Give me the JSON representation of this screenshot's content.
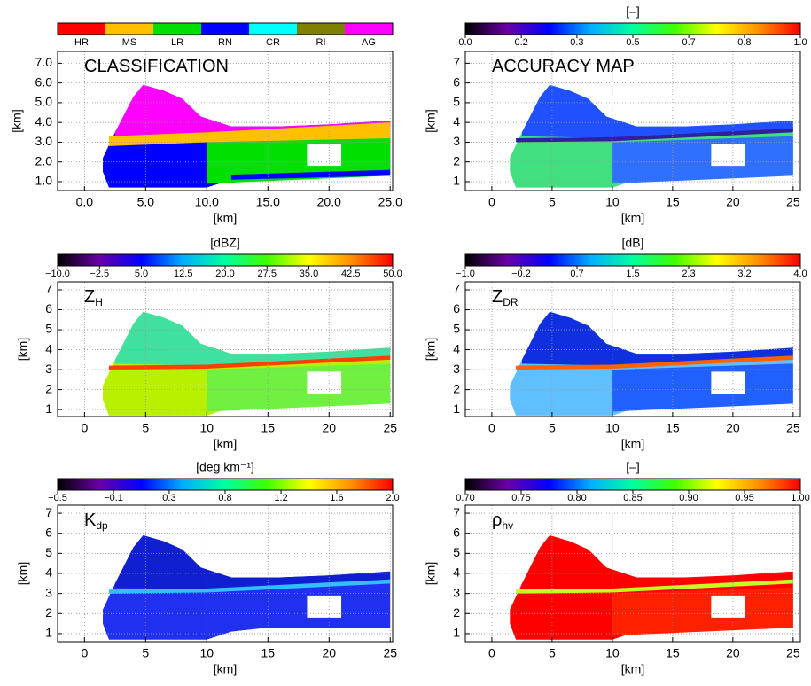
{
  "chart_data": [
    {
      "type": "heatmap",
      "title": "CLASSIFICATION",
      "colorbar": {
        "classes": [
          {
            "label": "HR",
            "color": "#ff0000"
          },
          {
            "label": "MS",
            "color": "#ffc000"
          },
          {
            "label": "LR",
            "color": "#00e000"
          },
          {
            "label": "RN",
            "color": "#0000ff"
          },
          {
            "label": "CR",
            "color": "#00ffff"
          },
          {
            "label": "RI",
            "color": "#808000"
          },
          {
            "label": "AG",
            "color": "#ff00ff"
          }
        ]
      },
      "xlabel": "[km]",
      "ylabel": "[km]",
      "xlim": [
        -2.2,
        25.2
      ],
      "ylim": [
        0.55,
        7.6
      ],
      "xticks": [
        {
          "value": 0,
          "label": "0.0"
        },
        {
          "value": 5,
          "label": "5.0"
        },
        {
          "value": 10,
          "label": "10.0"
        },
        {
          "value": 15,
          "label": "15.0"
        },
        {
          "value": 20,
          "label": "20.0"
        },
        {
          "value": 25,
          "label": "25.0"
        }
      ],
      "yticks": [
        {
          "value": 1,
          "label": "1.0"
        },
        {
          "value": 2,
          "label": "2.0"
        },
        {
          "value": 3,
          "label": "3.0"
        },
        {
          "value": 4,
          "label": "4.0"
        },
        {
          "value": 5,
          "label": "5.0"
        },
        {
          "value": 6,
          "label": "6.0"
        },
        {
          "value": 7,
          "label": "7.0"
        }
      ],
      "grid": true
    },
    {
      "type": "heatmap",
      "title": "ACCURACY MAP",
      "colorbar": {
        "label": "[–]",
        "lim": [
          0,
          1
        ],
        "ticks": [
          {
            "value": 0,
            "label": "0.0"
          },
          {
            "value": 0.167,
            "label": "0.2"
          },
          {
            "value": 0.333,
            "label": "0.3"
          },
          {
            "value": 0.5,
            "label": "0.5"
          },
          {
            "value": 0.667,
            "label": "0.7"
          },
          {
            "value": 0.833,
            "label": "0.8"
          },
          {
            "value": 1,
            "label": "1.0"
          }
        ],
        "colormap": [
          "#000000",
          "#6a00a8",
          "#0000ff",
          "#00b0ff",
          "#00ffa0",
          "#40ff00",
          "#ffff00",
          "#ff9000",
          "#ff0000"
        ]
      },
      "xlabel": "[km]",
      "ylabel": "[km]",
      "xlim": [
        -2.2,
        25.6
      ],
      "ylim": [
        0.55,
        7.6
      ],
      "xticks": [
        0,
        5,
        10,
        15,
        20,
        25
      ],
      "yticks": [
        1,
        2,
        3,
        4,
        5,
        6,
        7
      ],
      "grid": true
    },
    {
      "type": "heatmap",
      "title": "Z",
      "title_sub": "H",
      "colorbar": {
        "label": "[dBZ]",
        "lim": [
          -10,
          50
        ],
        "ticks": [
          {
            "value": -10,
            "label": "−10.0"
          },
          {
            "value": -2.5,
            "label": "−2.5"
          },
          {
            "value": 5,
            "label": "5.0"
          },
          {
            "value": 12.5,
            "label": "12.5"
          },
          {
            "value": 20,
            "label": "20.0"
          },
          {
            "value": 27.5,
            "label": "27.5"
          },
          {
            "value": 35,
            "label": "35.0"
          },
          {
            "value": 42.5,
            "label": "42.5"
          },
          {
            "value": 50,
            "label": "50.0"
          }
        ],
        "colormap": [
          "#000000",
          "#6a00a8",
          "#0000ff",
          "#00b0ff",
          "#00ffa0",
          "#40ff00",
          "#ffff00",
          "#ff9000",
          "#ff0000"
        ]
      },
      "xlabel": "[km]",
      "ylabel": "[km]",
      "xlim": [
        -2.2,
        25.2
      ],
      "ylim": [
        0.65,
        7.4
      ],
      "xticks": [
        0,
        5,
        10,
        15,
        20,
        25
      ],
      "yticks": [
        1,
        2,
        3,
        4,
        5,
        6,
        7
      ],
      "grid": true
    },
    {
      "type": "heatmap",
      "title": "Z",
      "title_sub": "DR",
      "colorbar": {
        "label": "[dB]",
        "lim": [
          -1,
          4
        ],
        "ticks": [
          {
            "value": -1,
            "label": "−1.0"
          },
          {
            "value": -0.167,
            "label": "−0.2"
          },
          {
            "value": 0.667,
            "label": "0.7"
          },
          {
            "value": 1.5,
            "label": "1.5"
          },
          {
            "value": 2.333,
            "label": "2.3"
          },
          {
            "value": 3.167,
            "label": "3.2"
          },
          {
            "value": 4,
            "label": "4.0"
          }
        ],
        "colormap": [
          "#000000",
          "#6a00a8",
          "#0000ff",
          "#00b0ff",
          "#00ffa0",
          "#40ff00",
          "#ffff00",
          "#ff9000",
          "#ff0000"
        ]
      },
      "xlabel": "[km]",
      "ylabel": "[km]",
      "xlim": [
        -2.2,
        25.6
      ],
      "ylim": [
        0.65,
        7.4
      ],
      "xticks": [
        0,
        5,
        10,
        15,
        20,
        25
      ],
      "yticks": [
        1,
        2,
        3,
        4,
        5,
        6,
        7
      ],
      "grid": true
    },
    {
      "type": "heatmap",
      "title": "K",
      "title_sub": "dp",
      "colorbar": {
        "label": "[deg km⁻¹]",
        "lim": [
          -0.5,
          2
        ],
        "ticks": [
          {
            "value": -0.5,
            "label": "−0.5"
          },
          {
            "value": -0.083,
            "label": "−0.1"
          },
          {
            "value": 0.333,
            "label": "0.3"
          },
          {
            "value": 0.75,
            "label": "0.8"
          },
          {
            "value": 1.167,
            "label": "1.2"
          },
          {
            "value": 1.583,
            "label": "1.6"
          },
          {
            "value": 2,
            "label": "2.0"
          }
        ],
        "colormap": [
          "#000000",
          "#6a00a8",
          "#0000ff",
          "#00b0ff",
          "#00ffa0",
          "#40ff00",
          "#ffff00",
          "#ff9000",
          "#ff0000"
        ]
      },
      "xlabel": "[km]",
      "ylabel": "[km]",
      "xlim": [
        -2.2,
        25.2
      ],
      "ylim": [
        0.6,
        7.4
      ],
      "xticks": [
        0,
        5,
        10,
        15,
        20,
        25
      ],
      "yticks": [
        1,
        2,
        3,
        4,
        5,
        6,
        7
      ],
      "grid": true
    },
    {
      "type": "heatmap",
      "title": "ρ",
      "title_sub": "hv",
      "colorbar": {
        "label": "[–]",
        "lim": [
          0.7,
          1
        ],
        "ticks": [
          {
            "value": 0.7,
            "label": "0.70"
          },
          {
            "value": 0.75,
            "label": "0.75"
          },
          {
            "value": 0.8,
            "label": "0.80"
          },
          {
            "value": 0.85,
            "label": "0.85"
          },
          {
            "value": 0.9,
            "label": "0.90"
          },
          {
            "value": 0.95,
            "label": "0.95"
          },
          {
            "value": 1,
            "label": "1.00"
          }
        ],
        "colormap": [
          "#000000",
          "#6a00a8",
          "#0000ff",
          "#00b0ff",
          "#00ffa0",
          "#40ff00",
          "#ffff00",
          "#ff9000",
          "#ff0000"
        ]
      },
      "xlabel": "[km]",
      "ylabel": "[km]",
      "xlim": [
        -2.2,
        25.6
      ],
      "ylim": [
        0.6,
        7.4
      ],
      "xticks": [
        0,
        5,
        10,
        15,
        20,
        25
      ],
      "yticks": [
        1,
        2,
        3,
        4,
        5,
        6,
        7
      ],
      "grid": true
    }
  ]
}
